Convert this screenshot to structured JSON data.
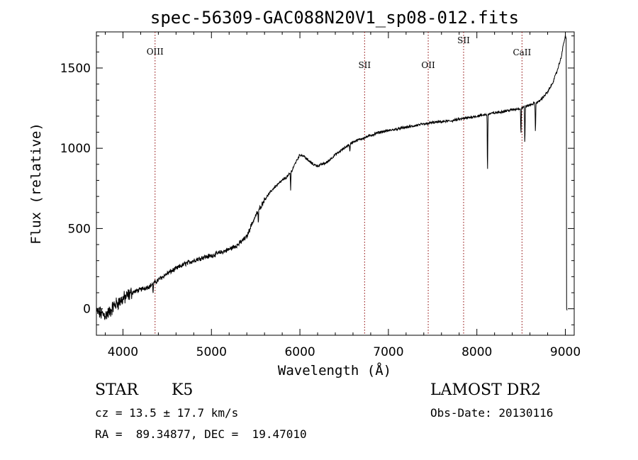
{
  "chart_data": {
    "type": "line",
    "title": "spec-56309-GAC088N20V1_sp08-012.fits",
    "xlabel": "Wavelength (Å)",
    "ylabel": "Flux (relative)",
    "xlim": [
      3700,
      9100
    ],
    "ylim": [
      -165,
      1725
    ],
    "xticks": [
      4000,
      5000,
      6000,
      7000,
      8000,
      9000
    ],
    "yticks": [
      0,
      500,
      1000,
      1500
    ],
    "grid": false,
    "line_markers": [
      {
        "label": "OIII",
        "x": 4363
      },
      {
        "label": "SII",
        "x": 6731
      },
      {
        "label": "OII",
        "x": 7450
      },
      {
        "label": "SII",
        "x": 7850
      },
      {
        "label": "CaII",
        "x": 8510
      }
    ],
    "continuum": {
      "x": [
        3700,
        3800,
        3850,
        3900,
        4000,
        4100,
        4200,
        4300,
        4400,
        4500,
        4600,
        4700,
        4800,
        4900,
        5000,
        5100,
        5200,
        5300,
        5400,
        5450,
        5500,
        5600,
        5700,
        5800,
        5850,
        5900,
        5950,
        6000,
        6050,
        6100,
        6150,
        6200,
        6300,
        6400,
        6500,
        6600,
        6700,
        6800,
        6900,
        7000,
        7100,
        7200,
        7300,
        7400,
        7500,
        7600,
        7700,
        7800,
        7900,
        8000,
        8100,
        8200,
        8300,
        8400,
        8500,
        8600,
        8700,
        8750,
        8800,
        8850,
        8900,
        8950,
        8980,
        9000,
        9010
      ],
      "y": [
        -20,
        -40,
        -20,
        20,
        60,
        100,
        120,
        140,
        180,
        220,
        250,
        280,
        300,
        320,
        330,
        350,
        370,
        400,
        450,
        520,
        580,
        680,
        750,
        800,
        820,
        850,
        910,
        960,
        950,
        920,
        900,
        890,
        910,
        960,
        1000,
        1040,
        1060,
        1080,
        1100,
        1110,
        1120,
        1130,
        1140,
        1150,
        1160,
        1165,
        1170,
        1180,
        1190,
        1200,
        1210,
        1220,
        1230,
        1240,
        1250,
        1270,
        1290,
        1320,
        1350,
        1400,
        1470,
        1560,
        1650,
        1700,
        1680
      ]
    },
    "absorption_lines": [
      {
        "x": 4340,
        "depth": 60
      },
      {
        "x": 5530,
        "depth": 80
      },
      {
        "x": 5895,
        "depth": 110
      },
      {
        "x": 6565,
        "depth": 60
      },
      {
        "x": 8120,
        "depth": 400
      },
      {
        "x": 8498,
        "depth": 180
      },
      {
        "x": 8542,
        "depth": 260
      },
      {
        "x": 8662,
        "depth": 200
      }
    ],
    "line_color": "#000000",
    "marker_color": "#8b0000"
  },
  "info": {
    "object_type": "STAR",
    "subclass": "K5",
    "survey": "LAMOST DR2",
    "cz": "cz = 13.5 ± 17.7 km/s",
    "obs_date": "Obs-Date: 20130116",
    "coords": "RA =  89.34877, DEC =  19.47010"
  }
}
